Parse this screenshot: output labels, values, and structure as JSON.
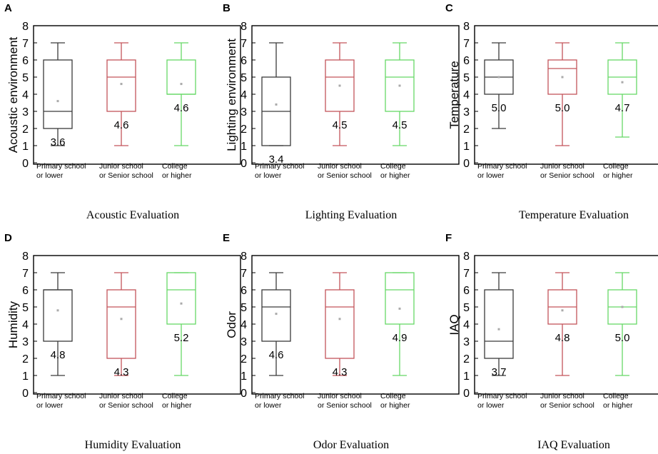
{
  "colors": {
    "primary": "#3a3a3a",
    "secondary": "#c4545a",
    "tertiary": "#66d866",
    "mean_dot": "#aaaaaa"
  },
  "chart_data": [
    {
      "type": "box",
      "letter": "A",
      "ylabel": "Acoustic environment",
      "caption": "Acoustic Evaluation",
      "ylim": [
        0,
        8
      ],
      "yticks": [
        "0",
        "1",
        "2",
        "3",
        "4",
        "5",
        "6",
        "7",
        "8"
      ],
      "categories": [
        [
          "Primary school",
          "or lower"
        ],
        [
          "Junior school",
          "or Senior school"
        ],
        [
          "College",
          "or higher"
        ]
      ],
      "boxes": [
        {
          "min": 1,
          "q1": 2,
          "median": 3,
          "q3": 6,
          "max": 7,
          "mean": 3.6,
          "mean_label": "3.6"
        },
        {
          "min": 1,
          "q1": 3,
          "median": 5,
          "q3": 6,
          "max": 7,
          "mean": 4.6,
          "mean_label": "4.6"
        },
        {
          "min": 1,
          "q1": 4,
          "median": 4,
          "q3": 6,
          "max": 7,
          "mean": 4.6,
          "mean_label": "4.6"
        }
      ]
    },
    {
      "type": "box",
      "letter": "B",
      "ylabel": "Lighting environment",
      "caption": "Lighting Evaluation",
      "ylim": [
        0,
        8
      ],
      "yticks": [
        "0",
        "1",
        "2",
        "3",
        "4",
        "5",
        "6",
        "7",
        "8"
      ],
      "categories": [
        [
          "Primary school",
          "or lower"
        ],
        [
          "Junior school",
          "or Senior school"
        ],
        [
          "College",
          "or higher"
        ]
      ],
      "boxes": [
        {
          "min": 1,
          "q1": 1,
          "median": 3,
          "q3": 5,
          "max": 7,
          "mean": 3.4,
          "mean_label": "3.4"
        },
        {
          "min": 1,
          "q1": 3,
          "median": 5,
          "q3": 6,
          "max": 7,
          "mean": 4.5,
          "mean_label": "4.5"
        },
        {
          "min": 1,
          "q1": 3,
          "median": 5,
          "q3": 6,
          "max": 7,
          "mean": 4.5,
          "mean_label": "4.5"
        }
      ]
    },
    {
      "type": "box",
      "letter": "C",
      "ylabel": "Temperature",
      "caption": "Temperature Evaluation",
      "ylim": [
        0,
        8
      ],
      "yticks": [
        "0",
        "1",
        "2",
        "3",
        "4",
        "5",
        "6",
        "7",
        "8"
      ],
      "categories": [
        [
          "Primary school",
          "or lower"
        ],
        [
          "Junior school",
          "or Senior school"
        ],
        [
          "College",
          "or higher"
        ]
      ],
      "boxes": [
        {
          "min": 2,
          "q1": 4,
          "median": 5,
          "q3": 6,
          "max": 7,
          "mean": 5.0,
          "mean_label": "5.0"
        },
        {
          "min": 1,
          "q1": 4,
          "median": 5.5,
          "q3": 6,
          "max": 7,
          "mean": 5.0,
          "mean_label": "5.0"
        },
        {
          "min": 1.5,
          "q1": 4,
          "median": 5,
          "q3": 6,
          "max": 7,
          "mean": 4.7,
          "mean_label": "4.7"
        }
      ]
    },
    {
      "type": "box",
      "letter": "D",
      "ylabel": "Humidity",
      "caption": "Humidity Evaluation",
      "ylim": [
        0,
        8
      ],
      "yticks": [
        "0",
        "1",
        "2",
        "3",
        "4",
        "5",
        "6",
        "7",
        "8"
      ],
      "categories": [
        [
          "Primary school",
          "or lower"
        ],
        [
          "Junior school",
          "or Senior school"
        ],
        [
          "College",
          "or higher"
        ]
      ],
      "boxes": [
        {
          "min": 1,
          "q1": 3,
          "median": 6,
          "q3": 6,
          "max": 7,
          "mean": 4.8,
          "mean_label": "4.8"
        },
        {
          "min": 1,
          "q1": 2,
          "median": 5,
          "q3": 6,
          "max": 7,
          "mean": 4.3,
          "mean_label": "4.3"
        },
        {
          "min": 1,
          "q1": 4,
          "median": 6,
          "q3": 7,
          "max": 7,
          "mean": 5.2,
          "mean_label": "5.2"
        }
      ]
    },
    {
      "type": "box",
      "letter": "E",
      "ylabel": "Odor",
      "caption": "Odor  Evaluation",
      "ylim": [
        0,
        8
      ],
      "yticks": [
        "0",
        "1",
        "2",
        "3",
        "4",
        "5",
        "6",
        "7",
        "8"
      ],
      "categories": [
        [
          "Primary school",
          "or lower"
        ],
        [
          "Junior school",
          "or Senior school"
        ],
        [
          "College",
          "or higher"
        ]
      ],
      "boxes": [
        {
          "min": 1,
          "q1": 3,
          "median": 5,
          "q3": 6,
          "max": 7,
          "mean": 4.6,
          "mean_label": "4.6"
        },
        {
          "min": 1,
          "q1": 2,
          "median": 5,
          "q3": 6,
          "max": 7,
          "mean": 4.3,
          "mean_label": "4.3"
        },
        {
          "min": 1,
          "q1": 4,
          "median": 6,
          "q3": 7,
          "max": 7,
          "mean": 4.9,
          "mean_label": "4.9"
        }
      ]
    },
    {
      "type": "box",
      "letter": "F",
      "ylabel": "IAQ",
      "caption": "IAQ Evaluation",
      "ylim": [
        0,
        8
      ],
      "yticks": [
        "0",
        "1",
        "2",
        "3",
        "4",
        "5",
        "6",
        "7",
        "8"
      ],
      "categories": [
        [
          "Primary school",
          "or lower"
        ],
        [
          "Junior school",
          "or Senior school"
        ],
        [
          "College",
          "or higher"
        ]
      ],
      "boxes": [
        {
          "min": 1,
          "q1": 2,
          "median": 3,
          "q3": 6,
          "max": 7,
          "mean": 3.7,
          "mean_label": "3.7"
        },
        {
          "min": 1,
          "q1": 4,
          "median": 5,
          "q3": 6,
          "max": 7,
          "mean": 4.8,
          "mean_label": "4.8"
        },
        {
          "min": 1,
          "q1": 4,
          "median": 5,
          "q3": 6,
          "max": 7,
          "mean": 5.0,
          "mean_label": "5.0"
        }
      ]
    }
  ]
}
